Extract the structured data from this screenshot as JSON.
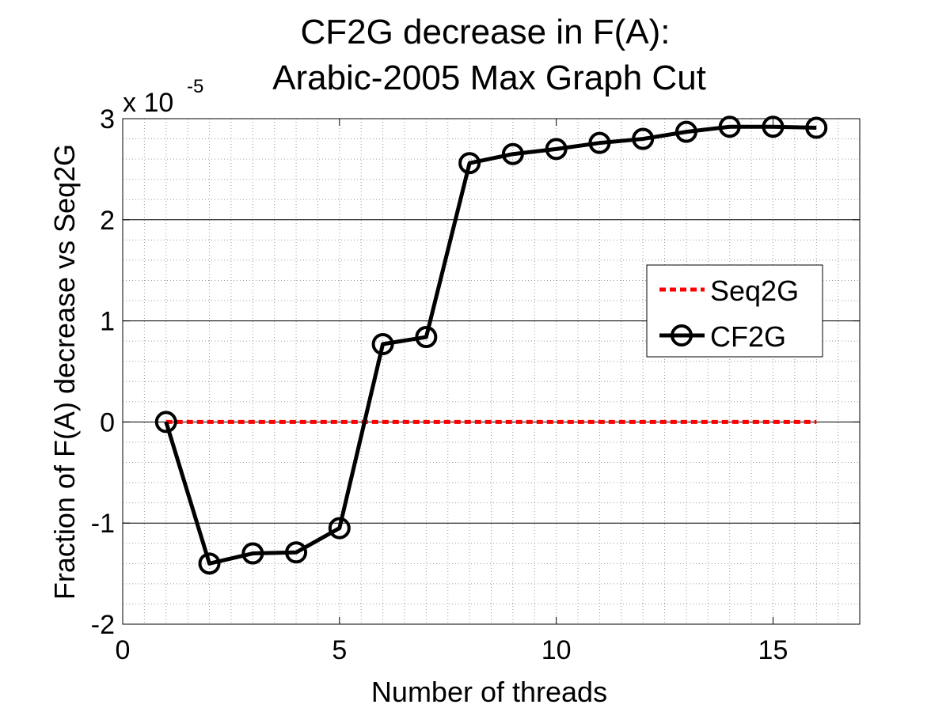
{
  "chart_data": {
    "type": "line",
    "title_line1": "CF2G decrease in F(A):",
    "title_line2": "Arabic-2005 Max Graph Cut",
    "xlabel": "Number of threads",
    "ylabel": "Fraction of F(A) decrease vs Seq2G",
    "y_exponent_base": "x 10",
    "y_exponent_power": "-5",
    "xlim": [
      0,
      17
    ],
    "ylim": [
      -2,
      3
    ],
    "xticks": [
      0,
      5,
      10,
      15
    ],
    "yticks": [
      -2,
      -1,
      0,
      1,
      2,
      3
    ],
    "xtick_labels": [
      "0",
      "5",
      "10",
      "15"
    ],
    "ytick_labels": [
      "-2",
      "-1",
      "0",
      "1",
      "2",
      "3"
    ],
    "grid": true,
    "minor_grid": true,
    "legend_placement": "right",
    "series": [
      {
        "name": "Seq2G",
        "color": "#ff0000",
        "style": "dashed",
        "marker": "none",
        "x": [
          1,
          16
        ],
        "y": [
          0,
          0
        ]
      },
      {
        "name": "CF2G",
        "color": "#000000",
        "style": "solid",
        "marker": "circle",
        "x": [
          1,
          2,
          3,
          4,
          5,
          6,
          7,
          8,
          9,
          10,
          11,
          12,
          13,
          14,
          15,
          16
        ],
        "y": [
          0,
          -1.4,
          -1.3,
          -1.29,
          -1.05,
          0.77,
          0.84,
          2.56,
          2.65,
          2.7,
          2.76,
          2.8,
          2.87,
          2.92,
          2.92,
          2.91
        ]
      }
    ]
  }
}
